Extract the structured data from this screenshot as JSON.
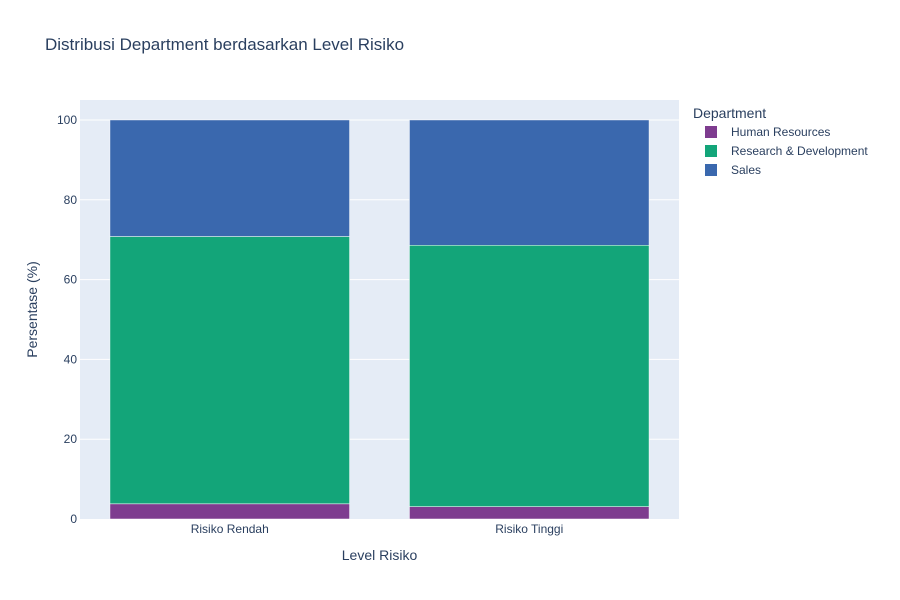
{
  "chart_data": {
    "type": "bar",
    "stacked": true,
    "title": "Distribusi Department berdasarkan Level Risiko",
    "xlabel": "Level Risiko",
    "ylabel": "Persentase (%)",
    "ylim": [
      0,
      105
    ],
    "yticks": [
      0,
      20,
      40,
      60,
      80,
      100
    ],
    "grid": true,
    "legend_title": "Department",
    "legend_position": "right",
    "categories": [
      "Risiko Rendah",
      "Risiko Tinggi"
    ],
    "series": [
      {
        "name": "Human Resources",
        "color": "#7e3c8f",
        "values": [
          3.8,
          3.1
        ]
      },
      {
        "name": "Research & Development",
        "color": "#13a579",
        "values": [
          67.0,
          65.5
        ]
      },
      {
        "name": "Sales",
        "color": "#3a68ae",
        "values": [
          29.2,
          31.4
        ]
      }
    ]
  }
}
